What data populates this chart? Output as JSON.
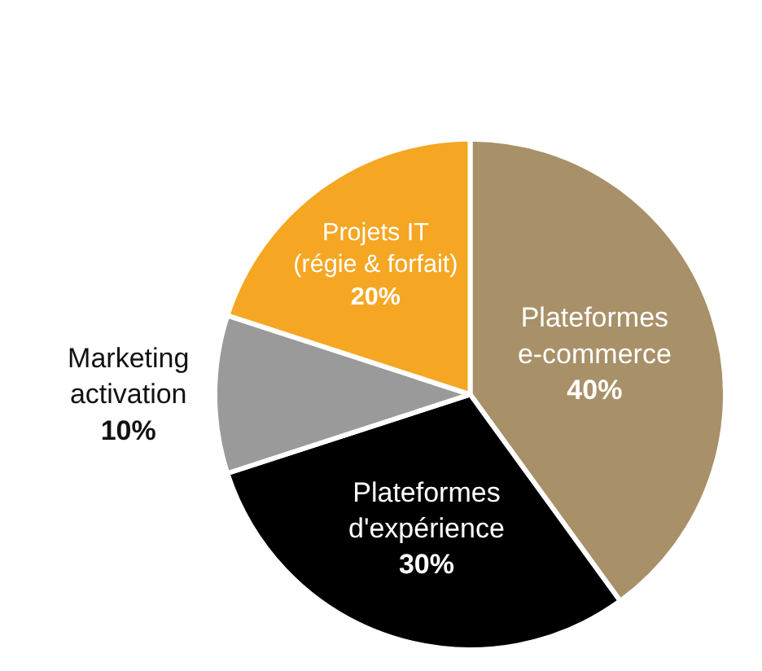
{
  "chart_data": {
    "type": "pie",
    "categories": [
      "Plateformes\ne-commerce",
      "Plateformes\nd'expérience",
      "Marketing\nactivation",
      "Projets IT\n(régie & forfait)"
    ],
    "values": [
      40,
      30,
      10,
      20
    ],
    "value_labels": [
      "40%",
      "30%",
      "10%",
      "20%"
    ],
    "colors": [
      "#a89068",
      "#000000",
      "#9a9a9a",
      "#f5a623"
    ],
    "legend": false
  }
}
